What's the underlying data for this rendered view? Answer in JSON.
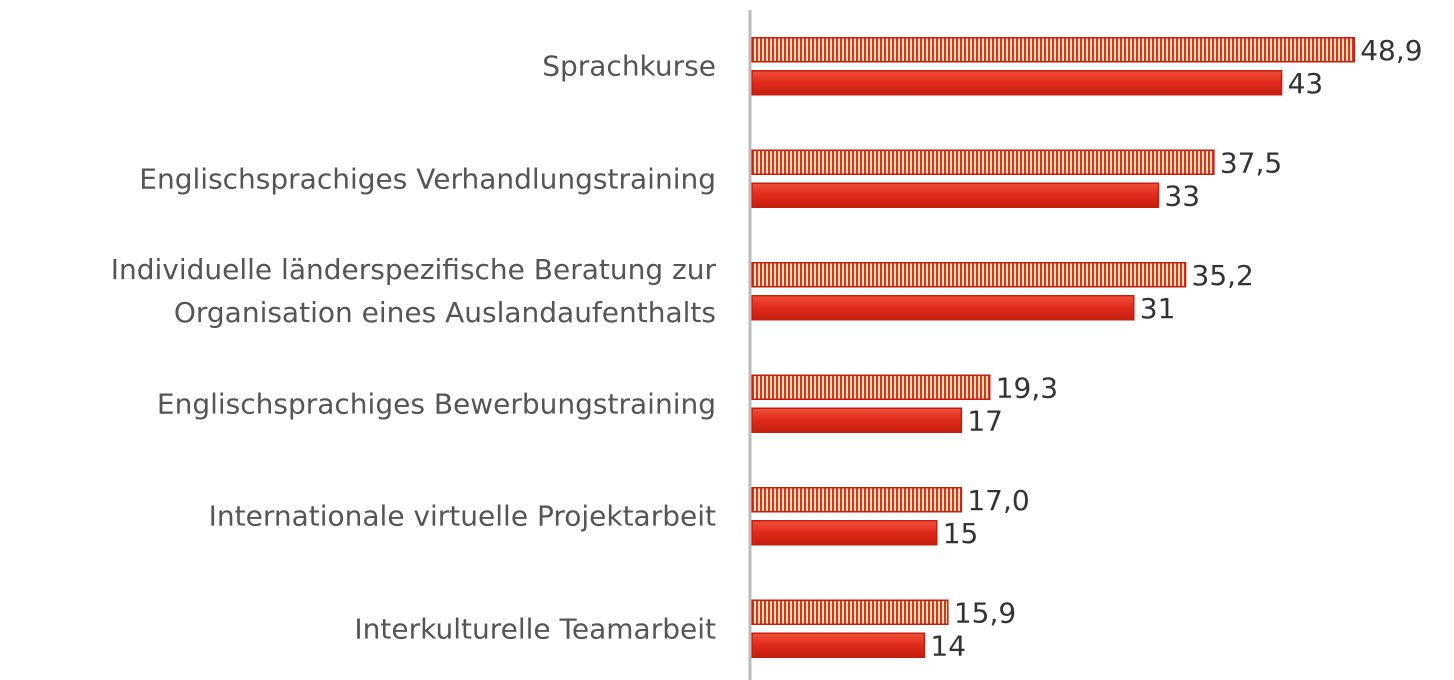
{
  "chart_data": {
    "type": "hbar",
    "categories": [
      "Sprachkurse",
      "Englischsprachiges Verhandlungstraining",
      "Individuelle länderspezifische Beratung zur\nOrganisation eines Auslandaufenthalts",
      "Englischsprachiges Bewerbungstraining",
      "Internationale virtuelle Projektarbeit",
      "Interkulturelle Teamarbeit"
    ],
    "series": [
      {
        "color": "#e03020",
        "pattern": "vertical-stripes",
        "values": [
          48.9,
          37.5,
          35.2,
          19.3,
          17.0,
          15.9
        ],
        "value_labels": [
          "48,9",
          "37,5",
          "35,2",
          "19,3",
          "17,0",
          "15,9"
        ]
      },
      {
        "color": "#e02a1a",
        "values": [
          43,
          33,
          31,
          17,
          15,
          14
        ]
      }
    ],
    "xlim": [
      0,
      57
    ]
  }
}
